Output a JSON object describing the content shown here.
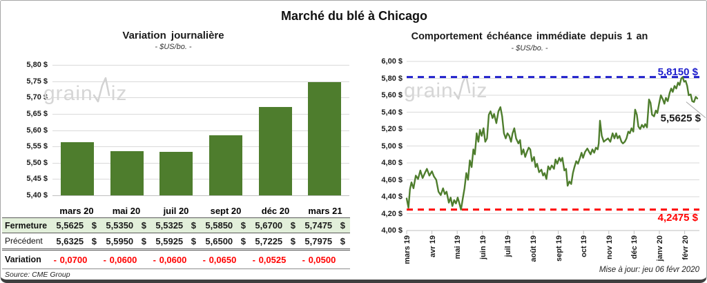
{
  "title": "Marché du blé à Chicago",
  "colors": {
    "green": "#4e7d2d",
    "blue": "#2020cc",
    "red": "#ff0000",
    "grid": "#d9d9d9",
    "axis": "#bfbfbf",
    "leader": "#a6a6a6"
  },
  "watermark": {
    "part1": "grain",
    "part2": "iz"
  },
  "table": {
    "columns": [
      "mars 20",
      "mai 20",
      "juil 20",
      "sept 20",
      "déc 20",
      "mars 21"
    ],
    "rows": [
      {
        "label": "Fermeture",
        "cells": [
          "5,5625 $",
          "5,5350 $",
          "5,5325 $",
          "5,5850 $",
          "5,6700 $",
          "5,7475 $"
        ]
      },
      {
        "label": "Précédent",
        "cells": [
          "5,6325 $",
          "5,5950 $",
          "5,5925 $",
          "5,6500 $",
          "5,7225 $",
          "5,7975 $"
        ]
      },
      {
        "label": "Variation",
        "cells": [
          "- 0,0700",
          "- 0,0600",
          "- 0,0600",
          "- 0,0650",
          "- 0,0525",
          "- 0,0500"
        ]
      }
    ],
    "source": "Source: CME Group"
  },
  "footer": {
    "updated": "Mise à jour: jeu 06 févr 2020"
  },
  "chart_data": [
    {
      "type": "bar",
      "title": "Variation journalière",
      "subtitle": "- $US/bo. -",
      "categories": [
        "mars 20",
        "mai 20",
        "juil 20",
        "sept 20",
        "déc 20",
        "mars 21"
      ],
      "values": [
        5.5625,
        5.535,
        5.5325,
        5.585,
        5.67,
        5.7475
      ],
      "ylim": [
        5.4,
        5.8
      ],
      "ytick_step": 0.05,
      "y_tick_labels": [
        "5,80 $",
        "5,75 $",
        "5,70 $",
        "5,65 $",
        "5,60 $",
        "5,55 $",
        "5,50 $",
        "5,45 $",
        "5,40 $"
      ],
      "grid": true,
      "legend": "none"
    },
    {
      "type": "line",
      "title": "Comportement échéance immédiate depuis 1 an",
      "subtitle": "- $US/bo. -",
      "x_labels": [
        "mars 19",
        "avr 19",
        "mai 19",
        "juin 19",
        "juil 19",
        "août 19",
        "sept 19",
        "oct 19",
        "nov 19",
        "déc 19",
        "janv 20",
        "févr 20"
      ],
      "ylim": [
        4.0,
        6.0
      ],
      "ytick_step": 0.2,
      "y_tick_labels": [
        "6,00 $",
        "5,80 $",
        "5,60 $",
        "5,40 $",
        "5,20 $",
        "5,00 $",
        "4,80 $",
        "4,60 $",
        "4,40 $",
        "4,20 $",
        "4,00 $"
      ],
      "grid": true,
      "legend": "none",
      "ref_high": {
        "value": 5.815,
        "label": "5,8150 $"
      },
      "ref_low": {
        "value": 4.2475,
        "label": "4,2475 $"
      },
      "last": {
        "value": 5.5625,
        "label": "5,5625 $"
      },
      "points": [
        [
          0.0,
          4.38
        ],
        [
          0.07,
          4.27
        ],
        [
          0.13,
          4.49
        ],
        [
          0.19,
          4.57
        ],
        [
          0.27,
          4.5
        ],
        [
          0.36,
          4.65
        ],
        [
          0.45,
          4.61
        ],
        [
          0.54,
          4.71
        ],
        [
          0.63,
          4.62
        ],
        [
          0.72,
          4.68
        ],
        [
          0.8,
          4.73
        ],
        [
          0.9,
          4.65
        ],
        [
          1.0,
          4.7
        ],
        [
          1.08,
          4.64
        ],
        [
          1.17,
          4.6
        ],
        [
          1.26,
          4.46
        ],
        [
          1.35,
          4.42
        ],
        [
          1.44,
          4.5
        ],
        [
          1.51,
          4.43
        ],
        [
          1.58,
          4.46
        ],
        [
          1.67,
          4.33
        ],
        [
          1.74,
          4.39
        ],
        [
          1.81,
          4.29
        ],
        [
          1.88,
          4.36
        ],
        [
          1.95,
          4.32
        ],
        [
          2.02,
          4.39
        ],
        [
          2.08,
          4.33
        ],
        [
          2.15,
          4.2475
        ],
        [
          2.22,
          4.38
        ],
        [
          2.29,
          4.5
        ],
        [
          2.36,
          4.68
        ],
        [
          2.43,
          4.6
        ],
        [
          2.5,
          4.83
        ],
        [
          2.57,
          4.75
        ],
        [
          2.64,
          4.96
        ],
        [
          2.7,
          4.9
        ],
        [
          2.77,
          5.15
        ],
        [
          2.84,
          5.05
        ],
        [
          2.9,
          5.19
        ],
        [
          2.97,
          5.12
        ],
        [
          3.04,
          5.21
        ],
        [
          3.11,
          5.05
        ],
        [
          3.18,
          5.09
        ],
        [
          3.25,
          5.37
        ],
        [
          3.32,
          5.41
        ],
        [
          3.4,
          5.33
        ],
        [
          3.46,
          5.38
        ],
        [
          3.55,
          5.27
        ],
        [
          3.63,
          5.41
        ],
        [
          3.71,
          5.46
        ],
        [
          3.78,
          5.35
        ],
        [
          3.85,
          5.15
        ],
        [
          3.92,
          5.09
        ],
        [
          3.99,
          5.15
        ],
        [
          4.06,
          5.12
        ],
        [
          4.13,
          5.05
        ],
        [
          4.19,
          5.15
        ],
        [
          4.26,
          5.21
        ],
        [
          4.33,
          5.09
        ],
        [
          4.42,
          5.03
        ],
        [
          4.49,
          5.07
        ],
        [
          4.55,
          4.9
        ],
        [
          4.62,
          4.96
        ],
        [
          4.69,
          4.87
        ],
        [
          4.76,
          4.93
        ],
        [
          4.83,
          4.98
        ],
        [
          4.89,
          4.96
        ],
        [
          4.96,
          4.82
        ],
        [
          5.04,
          4.87
        ],
        [
          5.1,
          4.75
        ],
        [
          5.16,
          4.79
        ],
        [
          5.24,
          4.69
        ],
        [
          5.33,
          4.72
        ],
        [
          5.4,
          4.65
        ],
        [
          5.46,
          4.68
        ],
        [
          5.53,
          4.61
        ],
        [
          5.6,
          4.76
        ],
        [
          5.67,
          4.72
        ],
        [
          5.74,
          4.77
        ],
        [
          5.83,
          4.73
        ],
        [
          5.89,
          4.84
        ],
        [
          5.96,
          4.79
        ],
        [
          6.04,
          4.86
        ],
        [
          6.1,
          4.82
        ],
        [
          6.16,
          4.86
        ],
        [
          6.24,
          4.71
        ],
        [
          6.31,
          4.73
        ],
        [
          6.37,
          4.53
        ],
        [
          6.44,
          4.58
        ],
        [
          6.51,
          4.55
        ],
        [
          6.58,
          4.68
        ],
        [
          6.64,
          4.75
        ],
        [
          6.71,
          4.82
        ],
        [
          6.78,
          4.79
        ],
        [
          6.86,
          4.86
        ],
        [
          6.92,
          4.92
        ],
        [
          6.98,
          4.86
        ],
        [
          7.06,
          4.93
        ],
        [
          7.15,
          4.97
        ],
        [
          7.22,
          4.93
        ],
        [
          7.28,
          4.9
        ],
        [
          7.35,
          4.96
        ],
        [
          7.42,
          4.92
        ],
        [
          7.49,
          4.98
        ],
        [
          7.56,
          4.96
        ],
        [
          7.6,
          5.03
        ],
        [
          7.65,
          5.3
        ],
        [
          7.72,
          5.12
        ],
        [
          7.8,
          5.05
        ],
        [
          7.88,
          5.07
        ],
        [
          7.97,
          5.09
        ],
        [
          8.06,
          5.05
        ],
        [
          8.15,
          5.15
        ],
        [
          8.22,
          5.09
        ],
        [
          8.29,
          5.15
        ],
        [
          8.35,
          5.09
        ],
        [
          8.42,
          5.12
        ],
        [
          8.5,
          5.05
        ],
        [
          8.56,
          5.03
        ],
        [
          8.63,
          5.05
        ],
        [
          8.7,
          5.09
        ],
        [
          8.77,
          5.17
        ],
        [
          8.83,
          5.15
        ],
        [
          8.9,
          5.21
        ],
        [
          8.97,
          5.17
        ],
        [
          9.04,
          5.43
        ],
        [
          9.11,
          5.37
        ],
        [
          9.17,
          5.23
        ],
        [
          9.24,
          5.2
        ],
        [
          9.31,
          5.25
        ],
        [
          9.38,
          5.22
        ],
        [
          9.44,
          5.26
        ],
        [
          9.51,
          5.22
        ],
        [
          9.59,
          5.55
        ],
        [
          9.65,
          5.51
        ],
        [
          9.71,
          5.37
        ],
        [
          9.79,
          5.35
        ],
        [
          9.86,
          5.42
        ],
        [
          9.92,
          5.39
        ],
        [
          9.99,
          5.5
        ],
        [
          10.06,
          5.6
        ],
        [
          10.14,
          5.55
        ],
        [
          10.2,
          5.5
        ],
        [
          10.26,
          5.57
        ],
        [
          10.33,
          5.53
        ],
        [
          10.41,
          5.63
        ],
        [
          10.47,
          5.68
        ],
        [
          10.53,
          5.64
        ],
        [
          10.6,
          5.71
        ],
        [
          10.67,
          5.68
        ],
        [
          10.74,
          5.75
        ],
        [
          10.8,
          5.72
        ],
        [
          10.87,
          5.8
        ],
        [
          10.92,
          5.815
        ],
        [
          10.98,
          5.76
        ],
        [
          11.04,
          5.77
        ],
        [
          11.1,
          5.71
        ],
        [
          11.16,
          5.6
        ],
        [
          11.24,
          5.61
        ],
        [
          11.3,
          5.53
        ],
        [
          11.37,
          5.52
        ],
        [
          11.44,
          5.58
        ],
        [
          11.5,
          5.5625
        ]
      ]
    }
  ]
}
